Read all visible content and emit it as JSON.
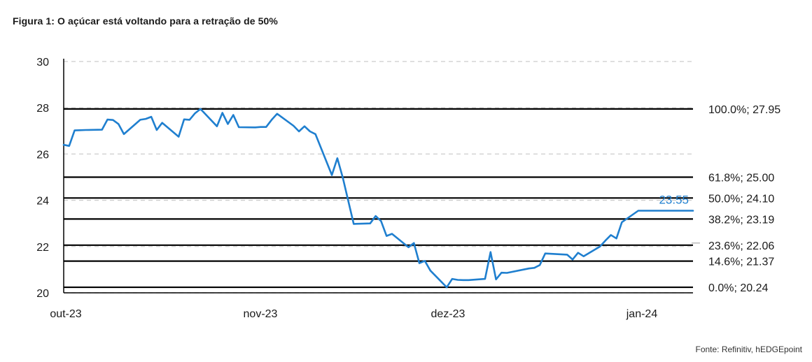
{
  "figure": {
    "title": "Figura 1: O açúcar está voltando para a retração de 50%",
    "source": "Fonte: Refinitiv, hEDGEpoint"
  },
  "colors": {
    "series": "#1f7fcf",
    "level_line": "#000000",
    "grid": "#cccccc",
    "axis": "#000000"
  },
  "chart_data": {
    "type": "line",
    "title": "Figura 1: O açúcar está voltando para a retração de 50%",
    "xlabel": "",
    "ylabel": "",
    "ylim": [
      20,
      30
    ],
    "yticks": [
      20,
      22,
      24,
      26,
      28,
      30
    ],
    "xticks": [
      "out-23",
      "nov-23",
      "dez-23",
      "jan-24"
    ],
    "grid": "horizontal dashed",
    "legend": "none",
    "series": [
      {
        "last_value_label": "23.55",
        "x": [
          "2023-10-02",
          "2023-10-03",
          "2023-10-04",
          "2023-10-05",
          "2023-10-06",
          "2023-10-09",
          "2023-10-10",
          "2023-10-11",
          "2023-10-12",
          "2023-10-13",
          "2023-10-16",
          "2023-10-17",
          "2023-10-18",
          "2023-10-19",
          "2023-10-20",
          "2023-10-23",
          "2023-10-24",
          "2023-10-25",
          "2023-10-26",
          "2023-10-27",
          "2023-10-30",
          "2023-10-31",
          "2023-11-01",
          "2023-11-02",
          "2023-11-03",
          "2023-11-06",
          "2023-11-07",
          "2023-11-08",
          "2023-11-09",
          "2023-11-10",
          "2023-11-13",
          "2023-11-14",
          "2023-11-15",
          "2023-11-16",
          "2023-11-17",
          "2023-11-20",
          "2023-11-21",
          "2023-11-22",
          "2023-11-24",
          "2023-11-27",
          "2023-11-28",
          "2023-11-29",
          "2023-11-30",
          "2023-12-01",
          "2023-12-04",
          "2023-12-05",
          "2023-12-06",
          "2023-12-07",
          "2023-12-08",
          "2023-12-11",
          "2023-12-12",
          "2023-12-13",
          "2023-12-14",
          "2023-12-15",
          "2023-12-18",
          "2023-12-19",
          "2023-12-20",
          "2023-12-21",
          "2023-12-22",
          "2023-12-26",
          "2023-12-27",
          "2023-12-28",
          "2023-12-29",
          "2024-01-02",
          "2024-01-03",
          "2024-01-04",
          "2024-01-05",
          "2024-01-08",
          "2024-01-09",
          "2024-01-10",
          "2024-01-11",
          "2024-01-12",
          "2024-01-15",
          "2024-01-16",
          "2024-01-17",
          "2024-01-18",
          "2024-01-19",
          "2024-01-22",
          "2024-01-23",
          "2024-01-24",
          "2024-01-25"
        ],
        "values": [
          26.4,
          26.35,
          27.02,
          27.03,
          27.04,
          27.05,
          27.49,
          27.47,
          27.3,
          26.86,
          27.48,
          27.52,
          27.61,
          27.04,
          27.35,
          26.75,
          27.5,
          27.48,
          27.76,
          27.95,
          27.2,
          27.78,
          27.3,
          27.69,
          27.16,
          27.15,
          27.17,
          27.17,
          27.48,
          27.74,
          27.22,
          26.98,
          27.2,
          26.98,
          26.86,
          25.09,
          25.82,
          24.98,
          22.98,
          23.0,
          23.32,
          23.1,
          22.46,
          22.55,
          21.97,
          22.15,
          21.28,
          21.38,
          20.96,
          20.24,
          20.6,
          20.56,
          20.55,
          20.55,
          20.6,
          21.76,
          20.58,
          20.87,
          20.86,
          21.05,
          21.08,
          21.2,
          21.7,
          21.65,
          21.44,
          21.73,
          21.58,
          22.0,
          22.26,
          22.5,
          22.35,
          23.05,
          23.55,
          23.55,
          23.55,
          23.55,
          23.55,
          23.55,
          23.55,
          23.55,
          23.55
        ]
      }
    ],
    "levels": [
      {
        "label": "100.0%; 27.95",
        "value": 27.95
      },
      {
        "label": "61.8%; 25.00",
        "value": 25.0
      },
      {
        "label": "50.0%; 24.10",
        "value": 24.1
      },
      {
        "label": "38.2%; 23.19",
        "value": 23.19
      },
      {
        "label": "23.6%; 22.06",
        "value": 22.06
      },
      {
        "label": "14.6%; 21.37",
        "value": 21.37
      },
      {
        "label": "0.0%; 20.24",
        "value": 20.24
      }
    ]
  }
}
